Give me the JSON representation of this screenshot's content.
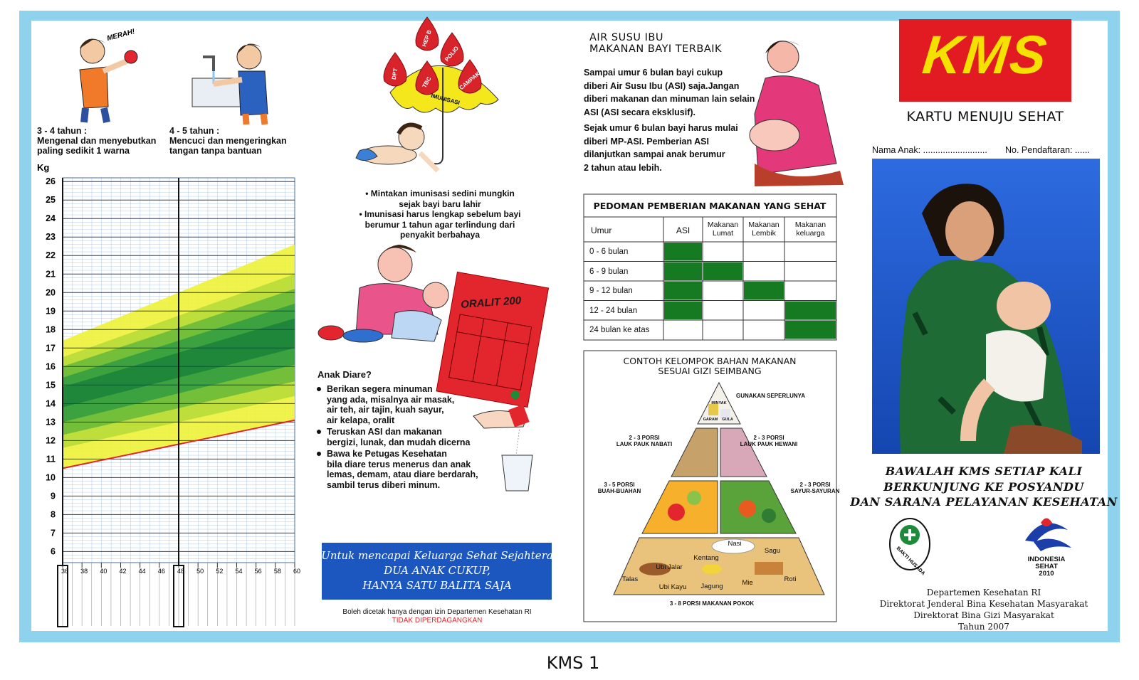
{
  "development": {
    "speech": "MERAH!",
    "milestones": [
      {
        "age": "3 - 4 tahun :",
        "lines": [
          "Mengenal dan menyebutkan",
          "paling sedikit 1 warna"
        ]
      },
      {
        "age": "4 - 5  tahun :",
        "lines": [
          "Mencuci dan mengeringkan",
          "tangan tanpa bantuan"
        ]
      }
    ]
  },
  "growth_chart": {
    "y_label": "Kg",
    "ylim": [
      5.4,
      26.2
    ],
    "yticks": [
      6,
      7,
      8,
      9,
      10,
      11,
      12,
      13,
      14,
      15,
      16,
      17,
      18,
      19,
      20,
      21,
      22,
      23,
      24,
      25,
      26
    ],
    "xlim": [
      36,
      60
    ],
    "xticks": [
      36,
      38,
      40,
      42,
      44,
      46,
      48,
      50,
      52,
      54,
      56,
      58,
      60
    ],
    "year_marks": [
      36,
      48
    ],
    "bands": [
      {
        "color": "#eef23c",
        "lower": [
          10.5,
          13.1
        ],
        "upper": [
          17.4,
          22.6
        ]
      },
      {
        "color": "#b8dc3a",
        "lower": [
          11.6,
          14.4
        ],
        "upper": [
          16.5,
          21.0
        ]
      },
      {
        "color": "#6cbc3a",
        "lower": [
          12.3,
          15.2
        ],
        "upper": [
          16.0,
          20.2
        ]
      },
      {
        "color": "#36a040",
        "lower": [
          13.0,
          16.1
        ],
        "upper": [
          15.4,
          19.4
        ]
      },
      {
        "color": "#1c8438",
        "lower": [
          13.8,
          17.0
        ],
        "upper": [
          14.9,
          18.6
        ]
      }
    ],
    "lower_line": {
      "color": "#e3262d",
      "values": [
        10.5,
        13.1
      ]
    }
  },
  "immunization": {
    "umbrella_label": "IMUNISASI",
    "drops": [
      "DPT",
      "HEP B",
      "POLIO",
      "TBC",
      "CAMPAK"
    ],
    "lines": [
      "• Mintakan imunisasi sedini mungkin",
      "sejak bayi baru lahir",
      "• Imunisasi harus lengkap sebelum bayi",
      "berumur 1 tahun agar terlindung dari",
      "penyakit berbahaya"
    ]
  },
  "diarrhea": {
    "oralit": "ORALIT 200",
    "title": "Anak Diare?",
    "bullets": [
      [
        "Berikan segera minuman",
        "yang ada, misalnya air masak,",
        "air teh, air tajin, kuah sayur,",
        "air kelapa, oralit"
      ],
      [
        "Teruskan ASI dan makanan",
        "bergizi, lunak, dan mudah dicerna"
      ],
      [
        "Bawa ke Petugas Kesehatan",
        "bila diare terus menerus dan anak",
        "lemas, demam, atau diare berdarah,",
        "sambil terus diberi minum."
      ]
    ]
  },
  "banner": [
    "Untuk mencapai Keluarga Sehat Sejahtera",
    "DUA ANAK CUKUP,",
    "HANYA SATU BALITA SAJA"
  ],
  "print_note": [
    "Boleh dicetak hanya dengan izin Departemen Kesehatan RI",
    "TIDAK DIPERDAGANGKAN"
  ],
  "breastfeeding": {
    "title": [
      "AIR SUSU IBU",
      "MAKANAN BAYI TERBAIK"
    ],
    "paragraphs": [
      [
        "Sampai umur 6 bulan bayi cukup",
        "diberi Air Susu Ibu (ASI) saja.Jangan",
        "diberi makanan dan minuman lain selain",
        "ASI (ASI secara eksklusif)."
      ],
      [
        "Sejak umur 6 bulan bayi harus mulai",
        "diberi MP-ASI. Pemberian ASI",
        "dilanjutkan sampai anak berumur",
        "2 tahun atau lebih."
      ]
    ]
  },
  "table": {
    "title": "PEDOMAN PEMBERIAN MAKANAN YANG SEHAT",
    "headers": [
      "Umur",
      "ASI",
      "Makanan Lumat",
      "Makanan Lembik",
      "Makanan keluarga"
    ],
    "rows": [
      {
        "label": "0 - 6 bulan",
        "cells": [
          true,
          false,
          false,
          false
        ]
      },
      {
        "label": "6 - 9 bulan",
        "cells": [
          true,
          true,
          false,
          false
        ]
      },
      {
        "label": "9 - 12 bulan",
        "cells": [
          true,
          false,
          true,
          false
        ]
      },
      {
        "label": "12 - 24 bulan",
        "cells": [
          true,
          false,
          false,
          true
        ]
      },
      {
        "label": "24 bulan ke atas",
        "cells": [
          false,
          false,
          false,
          true
        ]
      }
    ]
  },
  "pyramid": {
    "title": [
      "CONTOH KELOMPOK BAHAN MAKANAN",
      "SESUAI GIZI SEIMBANG"
    ],
    "top": "GUNAKAN SEPERLUNYA",
    "top_items": [
      "MINYAK",
      "GARAM",
      "GULA"
    ],
    "groups": [
      [
        "2 - 3 PORSI",
        "LAUK PAUK NABATI"
      ],
      [
        "2 - 3 PORSI",
        "LAUK PAUK HEWANI"
      ],
      [
        "3 - 5 PORSI",
        "BUAH-BUAHAN"
      ],
      [
        "2 - 3 PORSI",
        "SAYUR-SAYURAN"
      ]
    ],
    "foods": [
      "Nasi",
      "Sagu",
      "Kentang",
      "Ubi Jalar",
      "Talas",
      "Ubi Kayu",
      "Jagung",
      "Mie",
      "Roti"
    ],
    "base": "3 - 8 PORSI MAKANAN POKOK"
  },
  "cover": {
    "logo": "KMS",
    "subtitle": "KARTU MENUJU SEHAT",
    "fields": [
      "Nama Anak: ..........................",
      "No. Pendaftaran: ......"
    ],
    "slogan": [
      "BAWALAH KMS SETIAP KALI",
      "BERKUNJUNG KE POSYANDU",
      "DAN SARANA PELAYANAN KESEHATAN"
    ],
    "logo_left": "BAKTI HUSADA",
    "logo_right": [
      "INDONESIA",
      "SEHAT",
      "2010"
    ],
    "department": [
      "Departemen Kesehatan RI",
      "Direktorat Jenderal Bina Kesehatan Masyarakat",
      "Direktorat Bina Gizi Masyarakat",
      "Tahun 2007"
    ]
  },
  "caption": "KMS 1"
}
